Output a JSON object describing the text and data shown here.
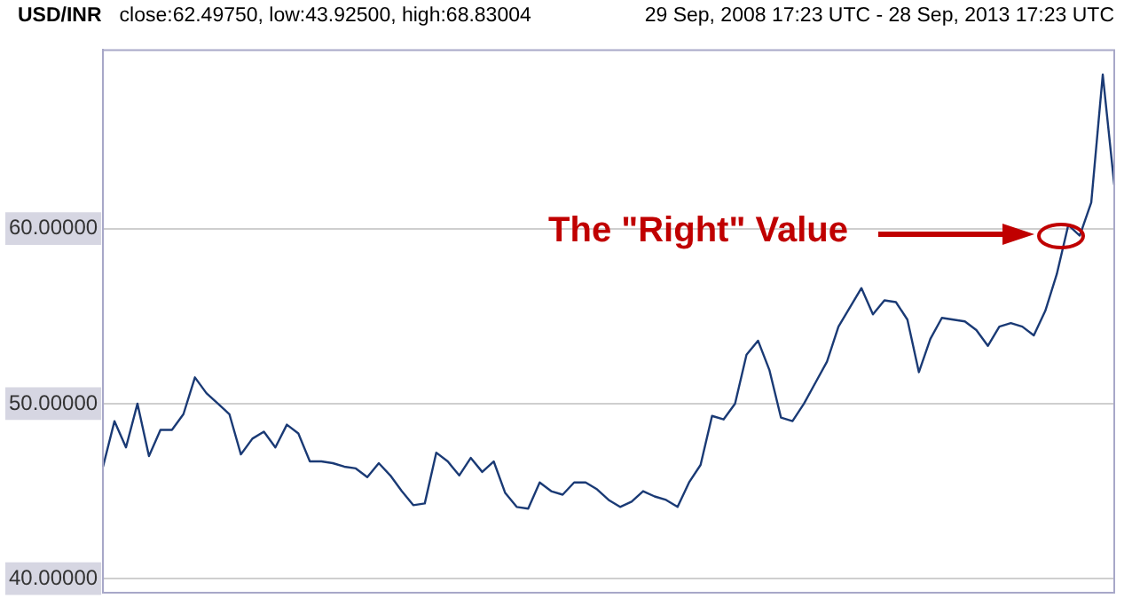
{
  "chart_data": {
    "type": "line",
    "title": "USD/INR",
    "subtitle": "close:62.49750, low:43.92500, high:68.83004",
    "annotations": [
      "29 Sep, 2008 17:23 UTC - 28 Sep, 2013 17:23 UTC",
      "The \"Right\" Value"
    ],
    "categories": [
      null,
      null,
      null,
      null,
      null,
      null,
      null,
      null,
      null,
      null,
      null,
      null,
      null,
      null,
      null,
      null,
      null,
      null,
      null,
      null,
      null,
      null,
      null,
      null,
      null,
      null,
      null,
      null,
      null,
      null,
      null,
      null,
      null,
      null,
      null,
      null,
      null,
      null,
      null,
      null,
      null,
      null,
      null,
      null,
      null,
      null,
      null,
      null,
      null,
      null,
      null,
      null,
      null,
      null,
      null,
      null,
      null,
      null,
      null,
      null,
      null,
      null,
      null,
      null,
      null,
      null,
      null,
      null,
      null,
      null,
      null,
      null,
      null,
      null,
      null,
      null,
      null,
      null,
      null,
      null,
      null,
      null,
      null,
      null,
      null,
      null,
      null,
      null,
      null
    ],
    "series": [
      {
        "color": "#1a3a75",
        "values": [
          46.4,
          49.0,
          47.5,
          50.0,
          47.0,
          48.5,
          48.5,
          49.4,
          51.5,
          50.6,
          50.0,
          49.4,
          47.1,
          48.0,
          48.4,
          47.5,
          48.8,
          48.3,
          46.7,
          46.7,
          46.6,
          46.4,
          46.3,
          45.8,
          46.6,
          45.9,
          45.0,
          44.2,
          44.3,
          47.2,
          46.7,
          45.9,
          46.9,
          46.1,
          46.7,
          44.9,
          44.1,
          44.0,
          45.5,
          45.0,
          44.8,
          45.5,
          45.5,
          45.1,
          44.5,
          44.1,
          44.4,
          45.0,
          44.7,
          44.5,
          44.1,
          45.5,
          46.5,
          49.3,
          49.1,
          50.0,
          52.8,
          53.6,
          51.9,
          49.2,
          49.0,
          50.0,
          51.2,
          52.4,
          54.4,
          55.5,
          56.6,
          55.1,
          55.9,
          55.8,
          54.8,
          51.8,
          53.7,
          54.9,
          54.8,
          54.7,
          54.2,
          53.3,
          54.4,
          54.6,
          54.4,
          53.9,
          55.3,
          57.4,
          60.2,
          59.6,
          61.5,
          68.8,
          62.5
        ]
      }
    ],
    "ylim": [
      39.2,
      70.2
    ],
    "yticks": [
      {
        "value": 40,
        "label": "40.00000"
      },
      {
        "value": 50,
        "label": "50.00000"
      },
      {
        "value": 60,
        "label": "60.00000"
      }
    ],
    "tick_labels": "y",
    "grid": "y",
    "legend": false,
    "marker": "none",
    "line_style": "solid"
  }
}
